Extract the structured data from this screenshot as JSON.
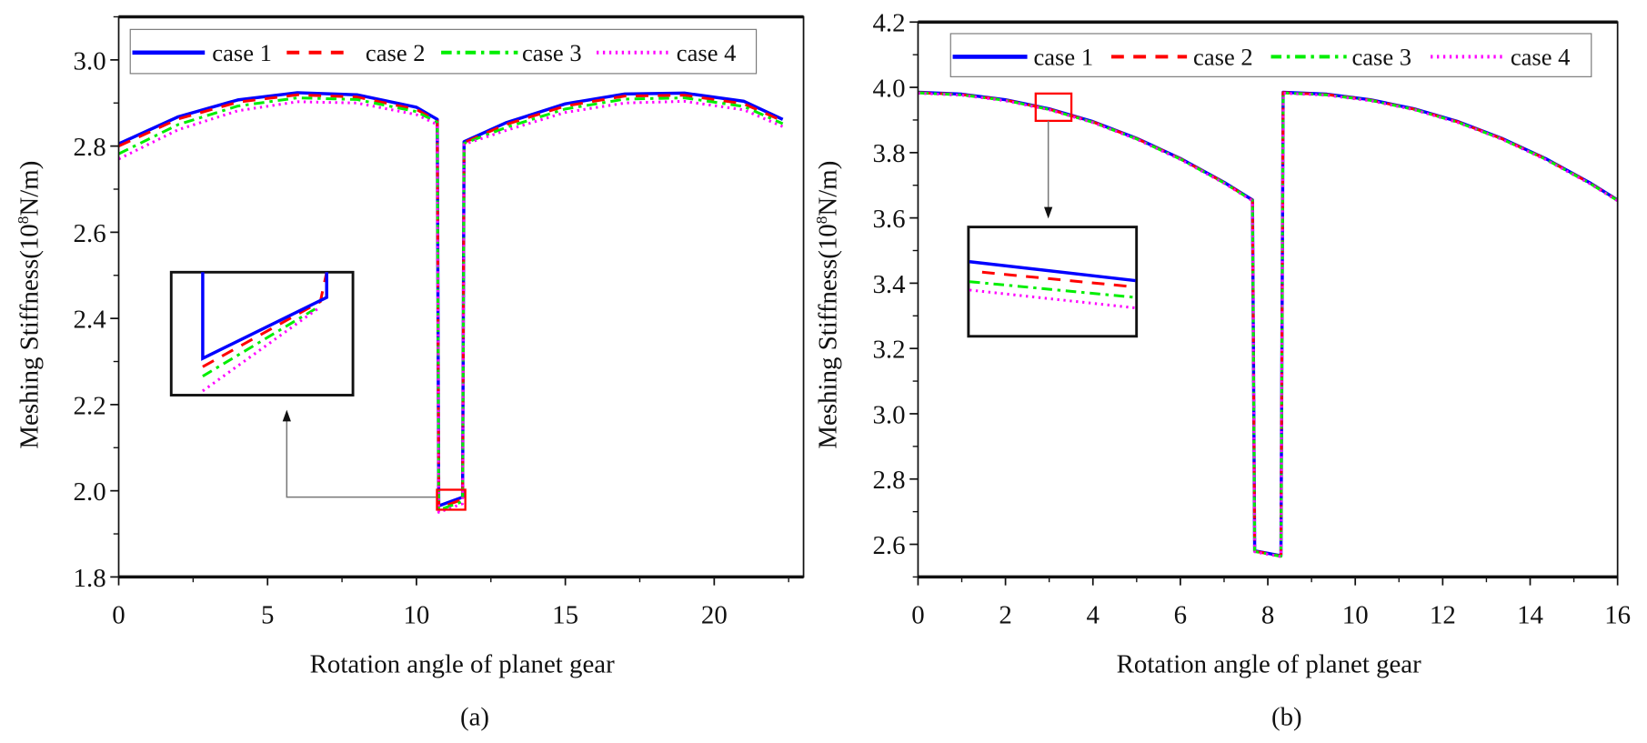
{
  "chart_data": [
    {
      "type": "line",
      "panel_label": "(a)",
      "xlabel": "Rotation angle of planet gear",
      "ylabel": "Meshing Stiffness(10",
      "ylabel_sup": "8",
      "ylabel_tail": "N/m)",
      "xlim": [
        0,
        23
      ],
      "ylim": [
        1.8,
        3.1
      ],
      "xticks": [
        "0",
        "5",
        "10",
        "15",
        "20"
      ],
      "yticks": [
        "1.8",
        "2.0",
        "2.2",
        "2.4",
        "2.6",
        "2.8",
        "3.0"
      ],
      "legend_position": "top",
      "x": [
        0,
        2,
        4,
        6,
        8,
        10,
        10.7,
        10.75,
        11.55,
        11.6,
        13,
        15,
        17,
        19,
        21,
        22.3
      ],
      "series": [
        {
          "name": "case 1",
          "color": "#0000ff",
          "style": "solid",
          "values": [
            2.805,
            2.868,
            2.907,
            2.924,
            2.919,
            2.89,
            2.862,
            1.965,
            1.985,
            2.81,
            2.854,
            2.898,
            2.921,
            2.923,
            2.904,
            2.862
          ]
        },
        {
          "name": "case 2",
          "color": "#ff0000",
          "style": "dash",
          "values": [
            2.8,
            2.863,
            2.902,
            2.919,
            2.914,
            2.885,
            2.858,
            1.96,
            1.98,
            2.808,
            2.85,
            2.893,
            2.916,
            2.918,
            2.898,
            2.858
          ]
        },
        {
          "name": "case 3",
          "color": "#00ee00",
          "style": "dashdot",
          "values": [
            2.782,
            2.85,
            2.893,
            2.912,
            2.908,
            2.88,
            2.855,
            1.955,
            1.975,
            2.806,
            2.843,
            2.886,
            2.909,
            2.912,
            2.892,
            2.852
          ]
        },
        {
          "name": "case 4",
          "color": "#ff00ff",
          "style": "dot",
          "values": [
            2.77,
            2.838,
            2.882,
            2.903,
            2.9,
            2.873,
            2.85,
            1.95,
            1.97,
            2.804,
            2.836,
            2.878,
            2.9,
            2.904,
            2.884,
            2.845
          ]
        }
      ]
    },
    {
      "type": "line",
      "panel_label": "(b)",
      "xlabel": "Rotation angle of planet gear",
      "ylabel": "Meshing Stiffness(10",
      "ylabel_sup": "8",
      "ylabel_tail": "N/m)",
      "xlim": [
        0,
        16
      ],
      "ylim": [
        2.5,
        4.2
      ],
      "xticks": [
        "0",
        "2",
        "4",
        "6",
        "8",
        "10",
        "12",
        "14",
        "16"
      ],
      "yticks": [
        "2.6",
        "2.8",
        "3.0",
        "3.2",
        "3.4",
        "3.6",
        "3.8",
        "4.0",
        "4.2"
      ],
      "legend_position": "top",
      "x": [
        0,
        1,
        2,
        3,
        4,
        5,
        6,
        7,
        7.65,
        7.7,
        8.3,
        8.35,
        9.35,
        10.35,
        11.35,
        12.35,
        13.35,
        14.35,
        15.35,
        16
      ],
      "series": [
        {
          "name": "case 1",
          "color": "#0000ff",
          "style": "solid",
          "values": [
            3.985,
            3.979,
            3.962,
            3.934,
            3.895,
            3.844,
            3.782,
            3.709,
            3.655,
            2.58,
            2.565,
            3.985,
            3.979,
            3.962,
            3.934,
            3.895,
            3.844,
            3.782,
            3.709,
            3.655
          ]
        },
        {
          "name": "case 2",
          "color": "#ff0000",
          "style": "dash",
          "values": [
            3.984,
            3.978,
            3.961,
            3.933,
            3.894,
            3.843,
            3.781,
            3.708,
            3.654,
            2.579,
            2.564,
            3.984,
            3.978,
            3.961,
            3.933,
            3.894,
            3.843,
            3.781,
            3.708,
            3.654
          ]
        },
        {
          "name": "case 3",
          "color": "#00ee00",
          "style": "dashdot",
          "values": [
            3.983,
            3.977,
            3.96,
            3.932,
            3.893,
            3.842,
            3.78,
            3.707,
            3.653,
            2.578,
            2.563,
            3.983,
            3.977,
            3.96,
            3.932,
            3.893,
            3.842,
            3.78,
            3.707,
            3.653
          ]
        },
        {
          "name": "case 4",
          "color": "#ff00ff",
          "style": "dot",
          "values": [
            3.982,
            3.976,
            3.959,
            3.931,
            3.892,
            3.841,
            3.779,
            3.706,
            3.652,
            2.577,
            2.562,
            3.982,
            3.976,
            3.959,
            3.931,
            3.892,
            3.841,
            3.779,
            3.706,
            3.652
          ]
        }
      ]
    }
  ]
}
